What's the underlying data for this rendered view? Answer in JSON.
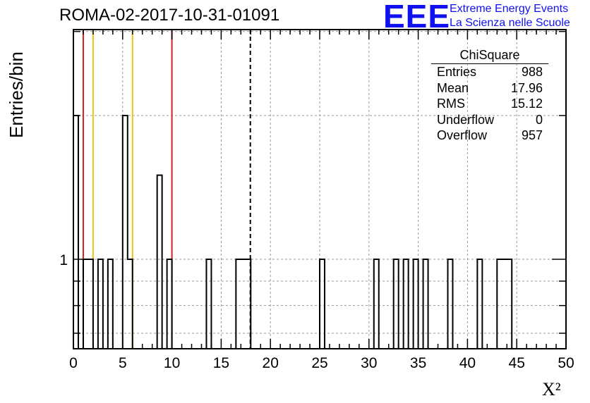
{
  "chart_data": {
    "type": "bar",
    "title": "ROMA-02-2017-10-31-01091",
    "xlabel": "X²",
    "ylabel": "Entries/bin",
    "xlim": [
      0,
      50
    ],
    "log_y": true,
    "grid": true,
    "x_tick_labels": [
      "0",
      "5",
      "10",
      "15",
      "20",
      "25",
      "30",
      "35",
      "40",
      "45",
      "50"
    ],
    "y_tick_labels": [
      "1"
    ],
    "bin_width": 0.5,
    "bins": [
      {
        "x0": 0.0,
        "value": 2
      },
      {
        "x0": 1.0,
        "value": 1
      },
      {
        "x0": 1.5,
        "value": 1
      },
      {
        "x0": 2.5,
        "value": 1
      },
      {
        "x0": 3.5,
        "value": 1
      },
      {
        "x0": 5.0,
        "value": 2
      },
      {
        "x0": 5.5,
        "value": 1
      },
      {
        "x0": 8.5,
        "value": 1.5
      },
      {
        "x0": 9.5,
        "value": 1
      },
      {
        "x0": 13.5,
        "value": 1
      },
      {
        "x0": 16.5,
        "value": 1
      },
      {
        "x0": 17.0,
        "value": 1
      },
      {
        "x0": 17.5,
        "value": 1
      },
      {
        "x0": 25.0,
        "value": 1
      },
      {
        "x0": 30.5,
        "value": 1
      },
      {
        "x0": 32.5,
        "value": 1
      },
      {
        "x0": 33.5,
        "value": 1
      },
      {
        "x0": 34.5,
        "value": 1
      },
      {
        "x0": 35.5,
        "value": 1
      },
      {
        "x0": 38.0,
        "value": 1
      },
      {
        "x0": 41.0,
        "value": 1
      },
      {
        "x0": 43.0,
        "value": 1
      },
      {
        "x0": 43.5,
        "value": 1
      },
      {
        "x0": 44.0,
        "value": 1
      }
    ],
    "vertical_lines": [
      {
        "x": 1.0,
        "color": "#dd1f1f",
        "style": "solid"
      },
      {
        "x": 2.0,
        "color": "#f2c019",
        "style": "solid"
      },
      {
        "x": 6.0,
        "color": "#f2c019",
        "style": "solid"
      },
      {
        "x": 10.0,
        "color": "#dd1f1f",
        "style": "solid"
      },
      {
        "x": 17.96,
        "color": "#000000",
        "style": "dashed"
      }
    ],
    "stats_box": {
      "title": "ChiSquare",
      "placement": "top-right",
      "rows": [
        {
          "label": "Entries",
          "value": "988"
        },
        {
          "label": "Mean",
          "value": "17.96"
        },
        {
          "label": "RMS",
          "value": "15.12"
        },
        {
          "label": "Underflow",
          "value": "0"
        },
        {
          "label": "Overflow",
          "value": "957"
        }
      ]
    }
  },
  "logo": {
    "mark": "EEE",
    "line1": "Extreme Energy Events",
    "line2": "La Scienza nelle Scuole",
    "color": "#1010f0"
  }
}
